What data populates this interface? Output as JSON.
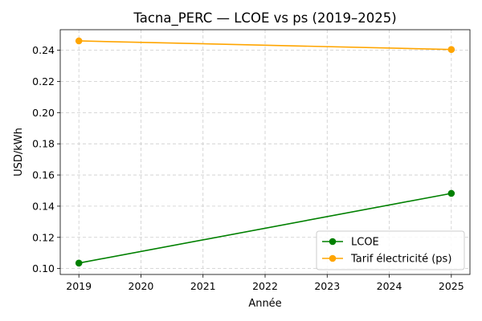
{
  "chart_data": {
    "type": "line",
    "title": "Tacna_PERC — LCOE vs ps (2019–2025)",
    "xlabel": "Année",
    "ylabel": "USD/kWh",
    "x": [
      2019,
      2025
    ],
    "xticks": [
      2019,
      2020,
      2021,
      2022,
      2023,
      2024,
      2025
    ],
    "yticks": [
      0.1,
      0.12,
      0.14,
      0.16,
      0.18,
      0.2,
      0.22,
      0.24
    ],
    "xlim": [
      2018.7,
      2025.3
    ],
    "ylim": [
      0.0962,
      0.2532
    ],
    "grid": true,
    "legend_position": "lower-right",
    "series": [
      {
        "name": "LCOE",
        "values": [
          0.1035,
          0.1482
        ],
        "color": "#008000",
        "marker": "circle"
      },
      {
        "name": "Tarif électricité (ps)",
        "values": [
          0.246,
          0.2405
        ],
        "color": "#ffa500",
        "marker": "circle"
      }
    ]
  }
}
